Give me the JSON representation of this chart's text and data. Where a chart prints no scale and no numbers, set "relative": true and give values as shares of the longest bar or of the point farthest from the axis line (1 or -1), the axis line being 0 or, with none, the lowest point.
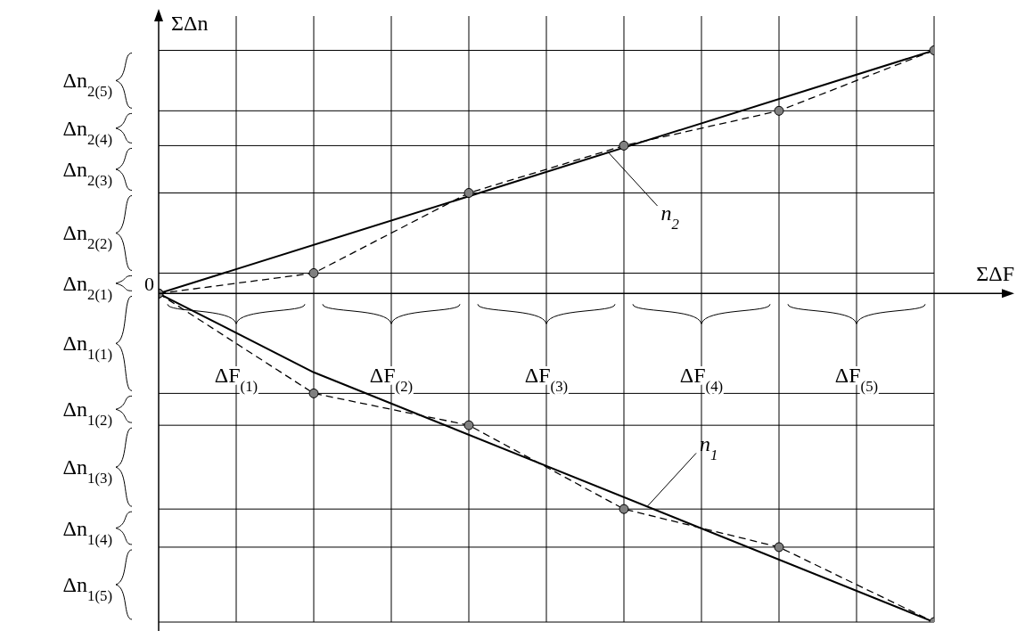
{
  "chart_data": {
    "type": "line",
    "relative": true,
    "xlabel": "ΣΔF",
    "ylabel": "ΣΔn",
    "grid": true,
    "legend": false,
    "categories": [
      null,
      null,
      null,
      null,
      null,
      null,
      null,
      null,
      null,
      null,
      null
    ],
    "series": [
      {
        "color": "#000000",
        "marker": "circle",
        "line_style": "dashed",
        "values": [
          0,
          null,
          0.062,
          null,
          0.306,
          null,
          0.45,
          null,
          0.556,
          null,
          0.74
        ]
      },
      {
        "name": "n$_{2}$",
        "color": "#000000",
        "line_style": "solid",
        "values": [
          0,
          null,
          null,
          null,
          null,
          null,
          null,
          null,
          null,
          null,
          0.74
        ]
      },
      {
        "color": "#000000",
        "marker": "circle",
        "line_style": "dashed",
        "values": [
          0,
          null,
          -0.304,
          null,
          -0.401,
          null,
          -0.656,
          null,
          -0.772,
          null,
          -1
        ]
      },
      {
        "name": "n$_{1}$",
        "color": "#000000",
        "line_style": "solid",
        "values": [
          0,
          null,
          -0.24,
          null,
          null,
          null,
          null,
          null,
          null,
          null,
          -1
        ]
      }
    ],
    "annotations": [
      "Δn$_{2(1)}$",
      "Δn$_{2(2)}$",
      "Δn$_{2(3)}$",
      "Δn$_{2(4)}$",
      "Δn$_{2(5)}$",
      "Δn$_{1(1)}$",
      "Δn$_{1(2)}$",
      "Δn$_{1(3)}$",
      "Δn$_{1(4)}$",
      "Δn$_{1(5)}$",
      "ΔF$_{(1)}$",
      "ΔF$_{(2)}$",
      "ΔF$_{(3)}$",
      "ΔF$_{(4)}$",
      "ΔF$_{(5)}$",
      "0"
    ]
  }
}
